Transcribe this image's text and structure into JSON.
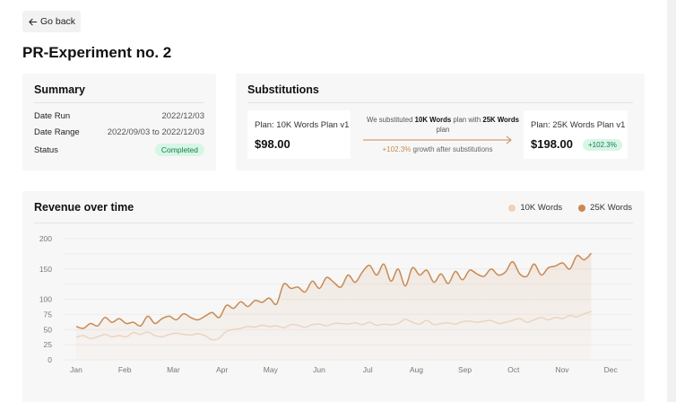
{
  "nav": {
    "back_label": "Go back"
  },
  "page": {
    "title": "PR-Experiment no. 2"
  },
  "summary": {
    "title": "Summary",
    "rows": [
      {
        "label": "Date Run",
        "value": "2022/12/03"
      },
      {
        "label": "Date Range",
        "value": "2022/09/03 to 2022/12/03"
      },
      {
        "label": "Status",
        "value": "Completed"
      }
    ]
  },
  "substitutions": {
    "title": "Substitutions",
    "from_plan": {
      "name": "Plan: 10K Words Plan v1",
      "price": "$98.00"
    },
    "to_plan": {
      "name": "Plan: 25K Words Plan v1",
      "price": "$198.00",
      "badge": "+102.3%"
    },
    "text_prefix": "We substituted",
    "text_from": "10K Words",
    "text_mid": "plan with",
    "text_to": "25K Words",
    "text_suffix": "plan",
    "growth_pct": "+102.3%",
    "growth_text": "growth after substitutions"
  },
  "colors": {
    "accent": "#c98a52",
    "light_series": "#ecd2bd",
    "success_bg": "#d6f6e6",
    "success_text": "#1d7a4d"
  },
  "chart_data": {
    "type": "area",
    "title": "Revenue over time",
    "x_ticks": [
      "Jan",
      "Feb",
      "Mar",
      "Apr",
      "May",
      "Jun",
      "Jul",
      "Aug",
      "Sep",
      "Oct",
      "Nov",
      "Dec"
    ],
    "ylim": [
      0,
      200
    ],
    "y_ticks": [
      0,
      25,
      50,
      75,
      100,
      125,
      150,
      175,
      200
    ],
    "y_tick_labels": [
      "0",
      "25",
      "50",
      "75",
      "100",
      "",
      "150",
      "",
      "200"
    ],
    "grid": true,
    "legend": "top-right",
    "series": [
      {
        "name": "10K Words",
        "color": "#ecd2bd",
        "values": [
          37,
          40,
          35,
          38,
          42,
          38,
          40,
          38,
          45,
          42,
          46,
          40,
          38,
          42,
          44,
          42,
          41,
          43,
          40,
          33,
          36,
          47,
          50,
          52,
          55,
          54,
          57,
          55,
          56,
          53,
          58,
          57,
          54,
          58,
          59,
          56,
          60,
          60,
          59,
          61,
          58,
          62,
          57,
          59,
          58,
          60,
          67,
          62,
          59,
          65,
          58,
          60,
          61,
          59,
          63,
          64,
          62,
          64,
          65,
          60,
          62,
          65,
          68,
          62,
          66,
          70,
          66,
          70,
          68,
          73,
          71,
          76,
          80
        ]
      },
      {
        "name": "25K Words",
        "color": "#c98a52",
        "values": [
          55,
          52,
          60,
          56,
          70,
          62,
          68,
          60,
          62,
          56,
          72,
          60,
          68,
          72,
          66,
          76,
          70,
          66,
          72,
          78,
          70,
          90,
          85,
          96,
          88,
          98,
          95,
          102,
          92,
          125,
          118,
          120,
          112,
          130,
          118,
          136,
          128,
          120,
          140,
          128,
          145,
          156,
          140,
          158,
          130,
          150,
          122,
          152,
          140,
          148,
          128,
          142,
          126,
          146,
          132,
          148,
          142,
          138,
          150,
          140,
          145,
          162,
          142,
          138,
          158,
          140,
          152,
          155,
          160,
          150,
          172,
          165,
          176
        ]
      }
    ]
  }
}
